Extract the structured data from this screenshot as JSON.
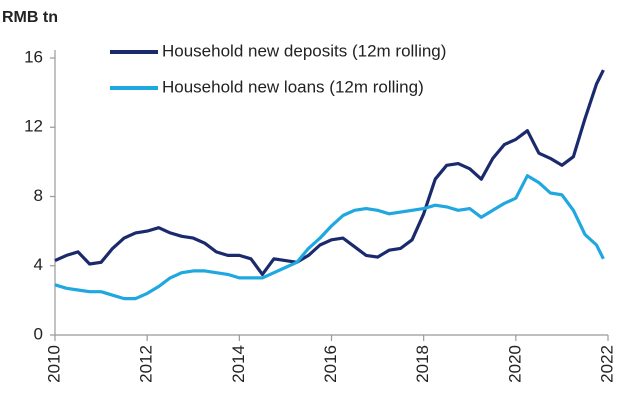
{
  "chart_data": {
    "type": "line",
    "y_label": "RMB tn",
    "x": [
      2010,
      2010.25,
      2010.5,
      2010.75,
      2011,
      2011.25,
      2011.5,
      2011.75,
      2012,
      2012.25,
      2012.5,
      2012.75,
      2013,
      2013.25,
      2013.5,
      2013.75,
      2014,
      2014.25,
      2014.5,
      2014.75,
      2015,
      2015.25,
      2015.5,
      2015.75,
      2016,
      2016.25,
      2016.5,
      2016.75,
      2017,
      2017.25,
      2017.5,
      2017.75,
      2018,
      2018.25,
      2018.5,
      2018.75,
      2019,
      2019.25,
      2019.5,
      2019.75,
      2020,
      2020.25,
      2020.5,
      2020.75,
      2021,
      2021.25,
      2021.5,
      2021.75,
      2021.9
    ],
    "series": [
      {
        "name": "Household new deposits (12m rolling)",
        "color": "#1a2a6c",
        "values": [
          4.3,
          4.6,
          4.8,
          4.1,
          4.2,
          5.0,
          5.6,
          5.9,
          6.0,
          6.2,
          5.9,
          5.7,
          5.6,
          5.3,
          4.8,
          4.6,
          4.6,
          4.4,
          3.5,
          4.4,
          4.3,
          4.2,
          4.6,
          5.2,
          5.5,
          5.6,
          5.1,
          4.6,
          4.5,
          4.9,
          5.0,
          5.5,
          7.0,
          9.0,
          9.8,
          9.9,
          9.6,
          9.0,
          10.2,
          11.0,
          11.3,
          11.8,
          10.5,
          10.2,
          9.8,
          10.3,
          12.5,
          14.5,
          15.3
        ]
      },
      {
        "name": "Household new loans (12m rolling)",
        "color": "#1fa8e0",
        "values": [
          2.9,
          2.7,
          2.6,
          2.5,
          2.5,
          2.3,
          2.1,
          2.1,
          2.4,
          2.8,
          3.3,
          3.6,
          3.7,
          3.7,
          3.6,
          3.5,
          3.3,
          3.3,
          3.3,
          3.6,
          3.9,
          4.2,
          5.0,
          5.6,
          6.3,
          6.9,
          7.2,
          7.3,
          7.2,
          7.0,
          7.1,
          7.2,
          7.3,
          7.5,
          7.4,
          7.2,
          7.3,
          6.8,
          7.2,
          7.6,
          7.9,
          9.2,
          8.8,
          8.2,
          8.1,
          7.2,
          5.8,
          5.2,
          4.4
        ]
      }
    ],
    "xlim": [
      2010,
      2022
    ],
    "xticks": [
      2010,
      2012,
      2014,
      2016,
      2018,
      2020,
      2022
    ],
    "ylim": [
      0,
      16
    ],
    "yticks": [
      0,
      4,
      8,
      12,
      16
    ],
    "legend": "upper left",
    "grid": false
  }
}
